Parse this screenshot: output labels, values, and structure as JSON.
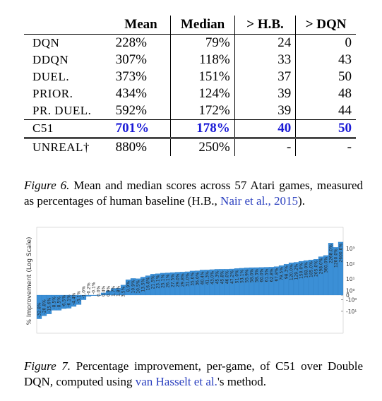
{
  "table": {
    "headers": [
      "",
      "Mean",
      "Median",
      "> H.B.",
      "> DQN"
    ],
    "rows": [
      {
        "agent": "DQN",
        "mean": "228%",
        "median": "79%",
        "hb": "24",
        "dqn": "0"
      },
      {
        "agent": "DDQN",
        "mean": "307%",
        "median": "118%",
        "hb": "33",
        "dqn": "43"
      },
      {
        "agent": "DUEL.",
        "mean": "373%",
        "median": "151%",
        "hb": "37",
        "dqn": "50"
      },
      {
        "agent": "PRIOR.",
        "mean": "434%",
        "median": "124%",
        "hb": "39",
        "dqn": "48"
      },
      {
        "agent": "PR. DUEL.",
        "mean": "592%",
        "median": "172%",
        "hb": "39",
        "dqn": "44"
      },
      {
        "agent": "C51",
        "mean": "701%",
        "median": "178%",
        "hb": "40",
        "dqn": "50"
      },
      {
        "agent": "UNREAL†",
        "mean": "880%",
        "median": "250%",
        "hb": "-",
        "dqn": "-"
      }
    ]
  },
  "figure6_caption": {
    "lead": "Figure 6.",
    "text": "Mean and median scores across 57 Atari games, measured as percentages of human baseline (H.B., ",
    "cite": "Nair et al., 2015",
    "tail": ")."
  },
  "figure7_caption": {
    "lead": "Figure 7.",
    "text": "Percentage improvement, per-game, of C51 over Double DQN, computed using ",
    "cite": "van Hasselt et al.",
    "tail": "'s method."
  },
  "chart_data": {
    "type": "bar",
    "ylabel": "% Improvement (Log Scale)",
    "yscale": "symlog",
    "yticks": [
      "10³",
      "10²",
      "10¹",
      "10⁰",
      "0",
      "-10⁰",
      "-10¹"
    ],
    "bar_color": "#3b8fd6",
    "values": [
      -32.8,
      -20.8,
      -15.6,
      -8.5,
      -8.5,
      -6.5,
      -6.1,
      -4.4,
      -3.1,
      -1.0,
      -0.2,
      -0.1,
      0.0,
      0.4,
      0.9,
      1.7,
      1.8,
      3.5,
      8.9,
      10.9,
      10.5,
      13.5,
      16.8,
      21.5,
      23.1,
      25.1,
      26.1,
      27.5,
      29.0,
      29.8,
      31.0,
      35.0,
      36.0,
      40.4,
      41.3,
      43.0,
      45.3,
      45.8,
      46.0,
      47.2,
      51.0,
      53.1,
      55.9,
      58.0,
      58.3,
      60.0,
      61.5,
      62.8,
      67.8,
      79.5,
      98.3,
      120.0,
      129.2,
      150.0,
      168.0,
      185.0,
      205.0,
      298.0,
      360.0,
      2268.0,
      1200.0,
      2600.0
    ],
    "labels": [
      "-32.8%",
      "-20.8%",
      "-15.6%",
      "-8.5%",
      "-8.5%",
      "-6.5%",
      "-6.1%",
      "-4.4%",
      "-3.1%",
      "-1.0%",
      "-0.2%",
      "-0.1%",
      "0.0%",
      "0.4%",
      "0.9%",
      "1.7%",
      "1.8%",
      "3.5%",
      "8.9%",
      "10.9%",
      "10.5%",
      "13.5%",
      "16.8%",
      "21.5%",
      "23.1%",
      "25.1%",
      "26.1%",
      "27.5%",
      "29.0%",
      "29.8%",
      "31.0%",
      "35.0%",
      "36.0%",
      "40.4%",
      "41.3%",
      "43.0%",
      "45.3%",
      "45.8%",
      "46.0%",
      "47.2%",
      "51.0%",
      "53.1%",
      "55.9%",
      "58.0%",
      "58.3%",
      "60.0%",
      "61.5%",
      "62.8%",
      "67.8%",
      "79.5%",
      "98.3%",
      "120.0%",
      "129.2%",
      "150.0%",
      "168.0%",
      "185.0%",
      "205.0%",
      "298.0%",
      "360.0%",
      "2268.0%",
      "1200.0%",
      "2600.0%"
    ]
  }
}
